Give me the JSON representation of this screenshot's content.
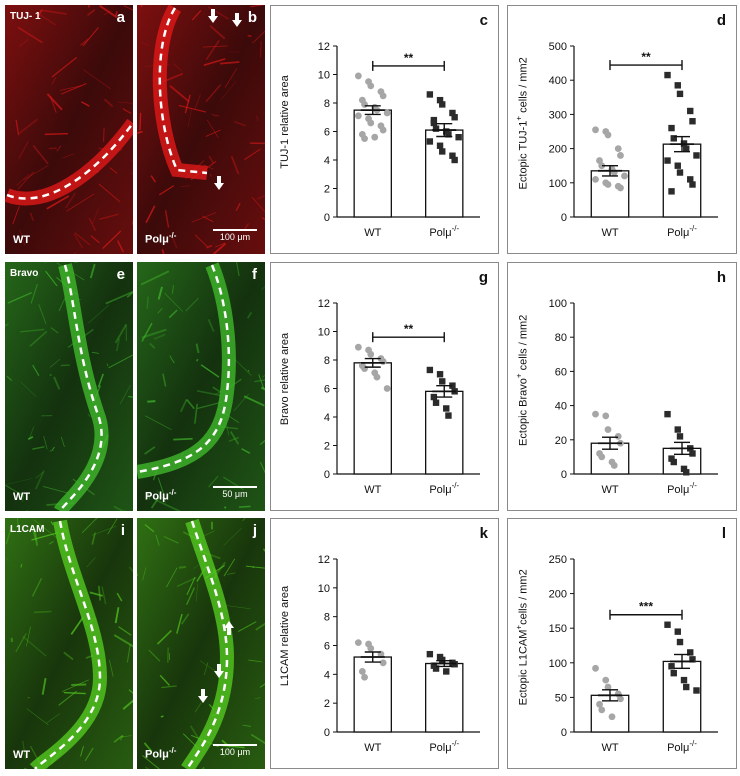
{
  "micrographs": [
    {
      "id": "a",
      "panel_label": "a",
      "stain": "TUJ- 1",
      "condition": "WT",
      "scale": "",
      "color": "#e01818"
    },
    {
      "id": "b",
      "panel_label": "b",
      "stain": "",
      "condition": "Polμ",
      "scale": "100 μm",
      "color": "#e01818"
    },
    {
      "id": "e",
      "panel_label": "e",
      "stain": "Bravo",
      "condition": "WT",
      "scale": "",
      "color": "#3fb62a"
    },
    {
      "id": "f",
      "panel_label": "f",
      "stain": "",
      "condition": "Polμ",
      "scale": "50 μm",
      "color": "#3fb62a"
    },
    {
      "id": "i",
      "panel_label": "i",
      "stain": "L1CAM",
      "condition": "WT",
      "scale": "",
      "color": "#52c81f"
    },
    {
      "id": "j",
      "panel_label": "j",
      "stain": "",
      "condition": "Polμ",
      "scale": "100 μm",
      "color": "#52c81f"
    }
  ],
  "knockout_sup": "-/-",
  "chart_data": [
    {
      "id": "c",
      "panel_label": "c",
      "type": "bar",
      "ylabel": "TUJ-1 relative area",
      "ylim": [
        0,
        12
      ],
      "yticks": [
        0,
        2,
        4,
        6,
        8,
        10,
        12
      ],
      "categories": [
        "WT",
        "Polμ"
      ],
      "means": [
        7.5,
        6.1
      ],
      "sem": [
        0.3,
        0.45
      ],
      "significance": "**",
      "points": [
        [
          9.9,
          9.5,
          9.2,
          8.8,
          8.5,
          8.2,
          7.9,
          7.7,
          7.5,
          7.3,
          7.1,
          6.9,
          6.6,
          6.4,
          6.1,
          5.8,
          5.5,
          5.6
        ],
        [
          8.6,
          8.2,
          7.9,
          7.3,
          7.0,
          6.6,
          6.2,
          6.0,
          5.8,
          5.6,
          5.3,
          5.0,
          4.6,
          4.3,
          4.0,
          6.8
        ]
      ]
    },
    {
      "id": "d",
      "panel_label": "d",
      "type": "bar",
      "ylabel": "Ectopic TUJ-1",
      "ylabel_sup": "+",
      "ylabel_suffix": " cells / mm2",
      "ylim": [
        0,
        500
      ],
      "yticks": [
        0,
        100,
        200,
        300,
        400,
        500
      ],
      "categories": [
        "WT",
        "Polμ"
      ],
      "means": [
        135,
        213
      ],
      "sem": [
        15,
        22
      ],
      "significance": "**",
      "points": [
        [
          255,
          250,
          240,
          200,
          180,
          165,
          150,
          140,
          130,
          120,
          110,
          100,
          95,
          90,
          85
        ],
        [
          415,
          385,
          360,
          310,
          280,
          260,
          230,
          215,
          200,
          180,
          165,
          150,
          130,
          110,
          95,
          75
        ]
      ]
    },
    {
      "id": "g",
      "panel_label": "g",
      "type": "bar",
      "ylabel": "Bravo relative area",
      "ylim": [
        0,
        12
      ],
      "yticks": [
        0,
        2,
        4,
        6,
        8,
        10,
        12
      ],
      "categories": [
        "WT",
        "Polμ"
      ],
      "means": [
        7.8,
        5.8
      ],
      "sem": [
        0.3,
        0.4
      ],
      "significance": "**",
      "points": [
        [
          8.9,
          8.7,
          8.4,
          8.1,
          7.9,
          7.6,
          7.4,
          7.1,
          6.8,
          6.0
        ],
        [
          7.3,
          7.0,
          6.5,
          6.2,
          5.8,
          5.4,
          5.0,
          4.6,
          4.1
        ]
      ]
    },
    {
      "id": "h",
      "panel_label": "h",
      "type": "bar",
      "ylabel": "Ectopic Bravo",
      "ylabel_sup": "+",
      "ylabel_suffix": " cells / mm2",
      "ylim": [
        0,
        100
      ],
      "yticks": [
        0,
        20,
        40,
        60,
        80,
        100
      ],
      "categories": [
        "WT",
        "Polμ"
      ],
      "means": [
        18,
        15
      ],
      "sem": [
        3.5,
        3.5
      ],
      "significance": "",
      "points": [
        [
          35,
          34,
          26,
          22,
          18,
          12,
          10,
          7,
          5
        ],
        [
          35,
          26,
          22,
          15,
          12,
          9,
          7,
          3,
          1
        ]
      ]
    },
    {
      "id": "k",
      "panel_label": "k",
      "type": "bar",
      "ylabel": "L1CAM relative area",
      "ylim": [
        0,
        12
      ],
      "yticks": [
        0,
        2,
        4,
        6,
        8,
        10,
        12
      ],
      "categories": [
        "WT",
        "Polμ"
      ],
      "means": [
        5.2,
        4.75
      ],
      "sem": [
        0.35,
        0.2
      ],
      "significance": "",
      "points": [
        [
          6.2,
          6.1,
          5.8,
          5.4,
          4.8,
          4.2,
          3.8
        ],
        [
          5.4,
          5.2,
          5.0,
          4.8,
          4.7,
          4.6,
          4.4,
          4.2
        ]
      ]
    },
    {
      "id": "l",
      "panel_label": "l",
      "type": "bar",
      "ylabel": "Ectopic L1CAM",
      "ylabel_sup": "+",
      "ylabel_suffix": "cells / mm2",
      "ylim": [
        0,
        250
      ],
      "yticks": [
        0,
        50,
        100,
        150,
        200,
        250
      ],
      "categories": [
        "WT",
        "Polμ"
      ],
      "means": [
        53,
        102
      ],
      "sem": [
        8,
        10
      ],
      "significance": "***",
      "points": [
        [
          92,
          75,
          65,
          55,
          48,
          40,
          32,
          22
        ],
        [
          155,
          145,
          130,
          115,
          105,
          95,
          85,
          75,
          65,
          60
        ]
      ]
    }
  ]
}
